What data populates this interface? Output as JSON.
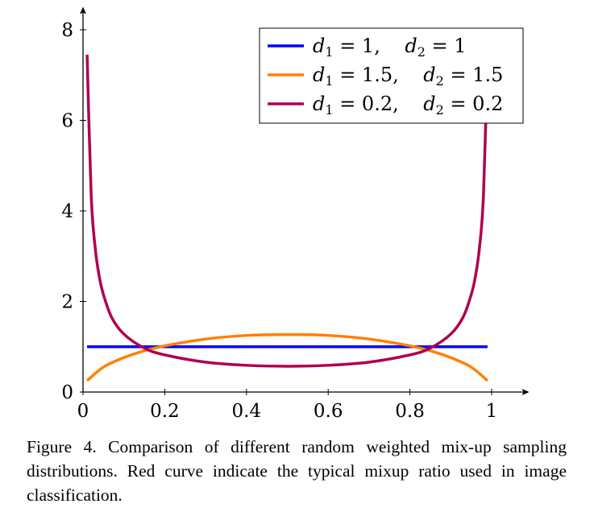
{
  "chart_data": {
    "type": "line",
    "title": "",
    "xlabel": "",
    "ylabel": "",
    "xlim": [
      0,
      1.08
    ],
    "ylim": [
      0,
      8.4
    ],
    "xticks": [
      0,
      0.2,
      0.4,
      0.6,
      0.8,
      1
    ],
    "xtick_labels": [
      "0",
      "0.2",
      "0.4",
      "0.6",
      "0.8",
      "1"
    ],
    "yticks": [
      0,
      2,
      4,
      6,
      8
    ],
    "ytick_labels": [
      "0",
      "2",
      "4",
      "6",
      "8"
    ],
    "grid": false,
    "legend_position": "top-right",
    "series": [
      {
        "name": "d1 = 1,    d2 = 1",
        "color": "#0000ff",
        "x": [
          0.01,
          0.99
        ],
        "y": [
          1.0,
          1.0
        ]
      },
      {
        "name": "d1 = 1.5,    d2 = 1.5",
        "color": "#ff8000",
        "x": [
          0.01,
          0.05,
          0.1,
          0.15,
          0.2,
          0.3,
          0.4,
          0.5,
          0.6,
          0.7,
          0.8,
          0.85,
          0.9,
          0.95,
          0.99
        ],
        "y": [
          0.25,
          0.55,
          0.76,
          0.91,
          1.02,
          1.17,
          1.25,
          1.27,
          1.25,
          1.17,
          1.02,
          0.91,
          0.76,
          0.55,
          0.25
        ]
      },
      {
        "name": "d1 = 0.2,    d2 = 0.2",
        "color": "#b0004d",
        "x": [
          0.01,
          0.02,
          0.03,
          0.04,
          0.05,
          0.07,
          0.1,
          0.15,
          0.2,
          0.3,
          0.4,
          0.5,
          0.6,
          0.7,
          0.8,
          0.85,
          0.9,
          0.93,
          0.95,
          0.96,
          0.97,
          0.98,
          0.99
        ],
        "y": [
          7.45,
          4.35,
          3.17,
          2.54,
          2.15,
          1.65,
          1.28,
          0.97,
          0.82,
          0.66,
          0.59,
          0.57,
          0.59,
          0.66,
          0.82,
          0.97,
          1.28,
          1.65,
          2.15,
          2.54,
          3.17,
          4.35,
          7.45
        ]
      }
    ],
    "legend_entries": [
      {
        "d1_label": "d",
        "d1_sub": "1",
        "d1_val": " = 1,",
        "d2_label": "d",
        "d2_sub": "2",
        "d2_val": " = 1"
      },
      {
        "d1_label": "d",
        "d1_sub": "1",
        "d1_val": " = 1.5,",
        "d2_label": "d",
        "d2_sub": "2",
        "d2_val": " = 1.5"
      },
      {
        "d1_label": "d",
        "d1_sub": "1",
        "d1_val": " = 0.2,",
        "d2_label": "d",
        "d2_sub": "2",
        "d2_val": " = 0.2"
      }
    ]
  },
  "caption": "Figure 4. Comparison of different random weighted mix-up sampling distributions. Red curve indicate the typical mixup ratio used in image classification."
}
